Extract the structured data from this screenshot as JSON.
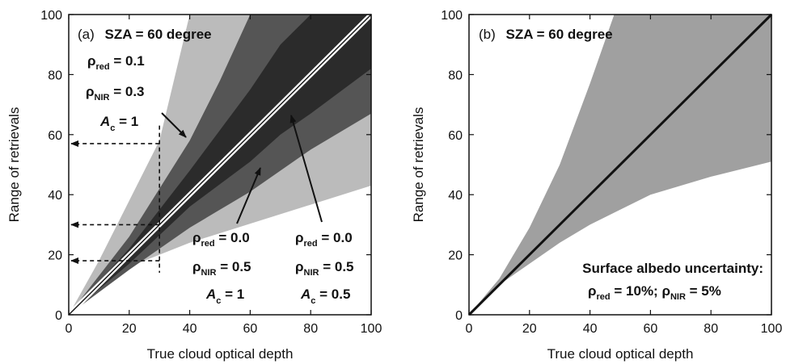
{
  "chart_data": [
    {
      "type": "area",
      "panel_label": "(a)",
      "title": "SZA = 60 degree",
      "xlabel": "True cloud optical depth",
      "ylabel": "Range of retrievals",
      "xlim": [
        0,
        100
      ],
      "ylim": [
        0,
        100
      ],
      "xticks": [
        "0",
        "20",
        "40",
        "60",
        "80",
        "100"
      ],
      "yticks": [
        "0",
        "20",
        "40",
        "60",
        "80",
        "100"
      ],
      "grid": false,
      "one_to_one_line": {
        "x": [
          0,
          100
        ],
        "y": [
          0,
          100
        ]
      },
      "bands": [
        {
          "label": "ρred = 0.1, ρNIR = 0.3, Ac = 1",
          "color": "#bbbbbb",
          "x": [
            0,
            10,
            20,
            30,
            40,
            100
          ],
          "upper": [
            0,
            18,
            38,
            58,
            100,
            100
          ],
          "lower": [
            0,
            10,
            16,
            20,
            24,
            43
          ]
        },
        {
          "label": "ρred = 0.0, ρNIR = 0.5, Ac = 0.5",
          "color": "#555555",
          "x": [
            0,
            20,
            40,
            50,
            60,
            80,
            100
          ],
          "upper": [
            0,
            26,
            58,
            78,
            100,
            100,
            100
          ],
          "lower": [
            0,
            15,
            29,
            35,
            41,
            55,
            67
          ]
        },
        {
          "label": "ρred = 0.0, ρNIR = 0.5, Ac = 1",
          "color": "#2b2b2b",
          "x": [
            0,
            20,
            40,
            60,
            70,
            80,
            100
          ],
          "upper": [
            0,
            22,
            48,
            75,
            90,
            100,
            100
          ],
          "lower": [
            0,
            17,
            36,
            51,
            60,
            67,
            82
          ]
        }
      ],
      "retrieval_example": {
        "true_depth": 30,
        "retrievals": [
          57,
          30,
          18
        ]
      }
    },
    {
      "type": "area",
      "panel_label": "(b)",
      "title": "SZA = 60 degree",
      "xlabel": "True cloud optical depth",
      "ylabel": "Range of retrievals",
      "xlim": [
        0,
        100
      ],
      "ylim": [
        0,
        100
      ],
      "xticks": [
        "0",
        "20",
        "40",
        "60",
        "80",
        "100"
      ],
      "yticks": [
        "0",
        "20",
        "40",
        "60",
        "80",
        "100"
      ],
      "grid": false,
      "one_to_one_line": {
        "x": [
          0,
          100
        ],
        "y": [
          0,
          100
        ]
      },
      "bands": [
        {
          "label": "Surface albedo uncertainty",
          "color": "#a0a0a0",
          "x": [
            0,
            10,
            20,
            30,
            40,
            48,
            60,
            80,
            100
          ],
          "upper": [
            0,
            12,
            29,
            50,
            77,
            100,
            100,
            100,
            100
          ],
          "lower": [
            0,
            10,
            17,
            24,
            30,
            34,
            40,
            46,
            51
          ]
        }
      ]
    }
  ],
  "panel_a": {
    "params_left": {
      "rho": "ρ",
      "sub_red": "red",
      "sub_nir": "NIR",
      "ac": "A",
      "sub_c": "c",
      "red_val": " = 0.1",
      "nir_val": " = 0.3",
      "ac_val": " = 1"
    },
    "params_mid": {
      "rho": "ρ",
      "sub_red": "red",
      "sub_nir": "NIR",
      "ac": "A",
      "sub_c": "c",
      "red_val": " = 0.0",
      "nir_val": " = 0.5",
      "ac_val": " = 1"
    },
    "params_right": {
      "rho": "ρ",
      "sub_red": "red",
      "sub_nir": "NIR",
      "ac": "A",
      "sub_c": "c",
      "red_val": " = 0.0",
      "nir_val": " = 0.5",
      "ac_val": " = 0.5"
    }
  },
  "panel_b": {
    "albedo_title": "Surface albedo uncertainty:",
    "albedo": {
      "rho": "ρ",
      "sub_red": "red",
      "red_val": " = 10%; ",
      "sub_nir": "NIR",
      "nir_val": " = 5%"
    }
  }
}
